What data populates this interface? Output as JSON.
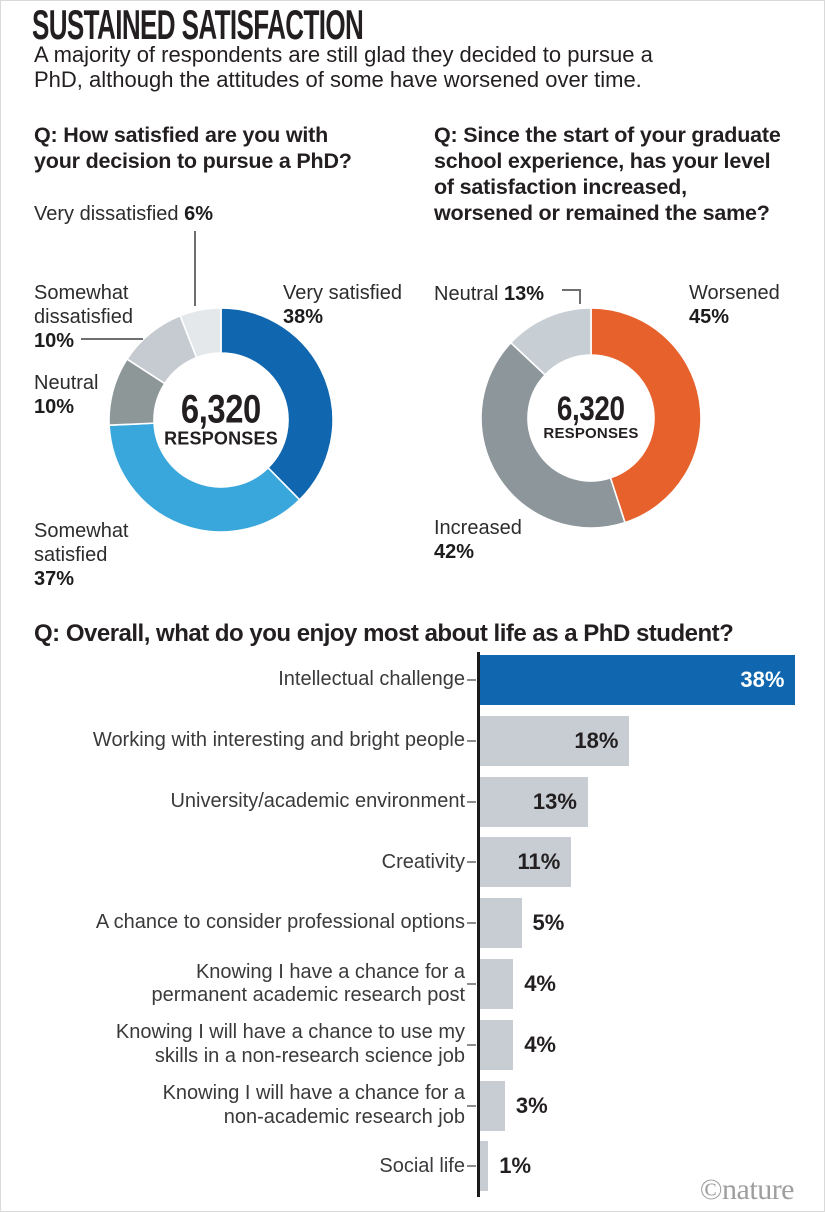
{
  "header": {
    "title": "SUSTAINED SATISFACTION",
    "subtitle": "A majority of respondents are still glad they decided to pursue a\nPhD, although the attitudes of some have worsened over time."
  },
  "chart_data": [
    {
      "type": "donut",
      "question": "Q: How satisfied are you with\nyour decision to pursue a PhD?",
      "center_value": "6,320",
      "center_label": "RESPONSES",
      "segments": [
        {
          "label": "Very satisfied",
          "value": 38,
          "pct": "38%",
          "color": "#1067AF"
        },
        {
          "label": "Somewhat satisfied",
          "value": 37,
          "pct": "37%",
          "color": "#3AA7DC"
        },
        {
          "label": "Neutral",
          "value": 10,
          "pct": "10%",
          "color": "#8E9798"
        },
        {
          "label": "Somewhat dissatisfied",
          "value": 10,
          "pct": "10%",
          "color": "#C5CBD0"
        },
        {
          "label": "Very dissatisfied",
          "value": 6,
          "pct": "6%",
          "color": "#E4E8EB"
        }
      ]
    },
    {
      "type": "donut",
      "question": "Q: Since the start of your graduate\nschool experience, has your level\nof satisfaction increased,\nworsened or remained the same?",
      "center_value": "6,320",
      "center_label": "RESPONSES",
      "segments": [
        {
          "label": "Worsened",
          "value": 45,
          "pct": "45%",
          "color": "#E7612C"
        },
        {
          "label": "Increased",
          "value": 42,
          "pct": "42%",
          "color": "#8D969B"
        },
        {
          "label": "Neutral",
          "value": 13,
          "pct": "13%",
          "color": "#C7CED4"
        }
      ]
    },
    {
      "type": "bar",
      "question": "Q: Overall, what do you enjoy most about life as a PhD student?",
      "categories": [
        "Intellectual challenge",
        "Working with interesting and bright people",
        "University/academic environment",
        "Creativity",
        "A chance to consider professional options",
        "Knowing I have a chance for a\npermanent academic research post",
        "Knowing I will have a chance to use my\nskills in a non-research science job",
        "Knowing I will have a chance for a\nnon-academic research job",
        "Social life"
      ],
      "values": [
        38,
        18,
        13,
        11,
        5,
        4,
        4,
        3,
        1
      ],
      "value_labels": [
        "38%",
        "18%",
        "13%",
        "11%",
        "5%",
        "4%",
        "4%",
        "3%",
        "1%"
      ],
      "highlight_color": "#1067AF",
      "default_color": "#C8CDD3",
      "xlabel": "",
      "ylabel": "",
      "xlim": [
        0,
        40
      ],
      "grid": false
    }
  ],
  "footer": {
    "credit": "©nature"
  }
}
